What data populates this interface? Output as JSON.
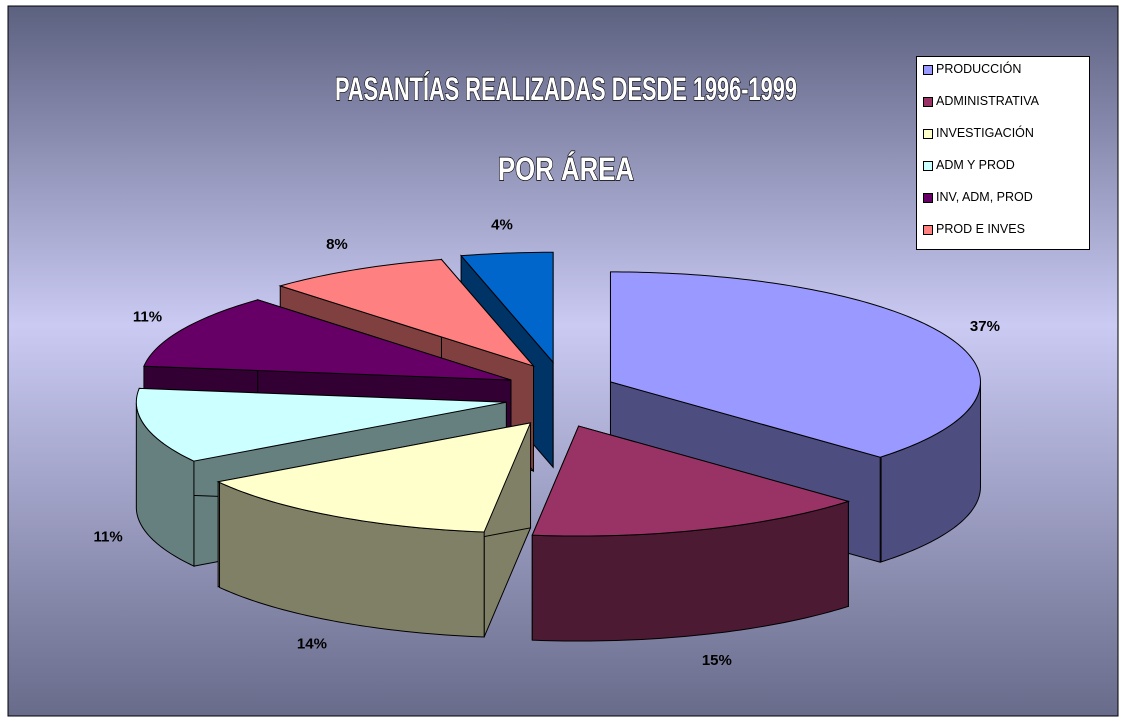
{
  "chart_data": {
    "type": "pie",
    "title": "PASANTÍAS REALIZADAS DESDE 1996-1999",
    "subtitle": "POR ÁREA",
    "categories": [
      "PRODUCCIÓN",
      "ADMINISTRATIVA",
      "INVESTIGACIÓN",
      "ADM Y PROD",
      "INV, ADM, PROD",
      "PROD E INVES",
      null
    ],
    "values": [
      37,
      15,
      14,
      11,
      11,
      8,
      4
    ],
    "value_labels": [
      "37%",
      "15%",
      "14%",
      "11%",
      "11%",
      "8%",
      "4%"
    ],
    "colors": [
      "#9999ff",
      "#993366",
      "#ffffcc",
      "#ccffff",
      "#660066",
      "#ff8080",
      "#0066cc"
    ],
    "legend": "top-right"
  }
}
